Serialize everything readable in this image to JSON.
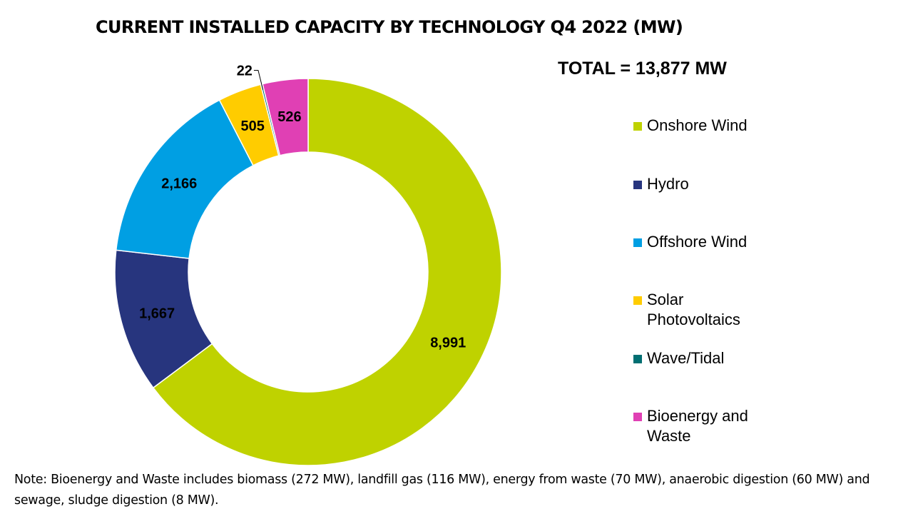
{
  "title": "CURRENT INSTALLED CAPACITY BY TECHNOLOGY Q4 2022 (MW)",
  "total_label": "TOTAL = 13,877 MW",
  "note": "Note: Bioenergy and Waste includes biomass (272 MW), landfill gas (116 MW), energy from waste (70 MW), anaerobic digestion (60 MW) and sewage, sludge digestion (8 MW).",
  "chart_data": {
    "type": "pie",
    "variant": "donut",
    "title": "CURRENT INSTALLED CAPACITY BY TECHNOLOGY Q4 2022 (MW)",
    "unit": "MW",
    "total": 13877,
    "legend_position": "right",
    "slices": [
      {
        "name": "Onshore Wind",
        "value": 8991,
        "label": "8,991",
        "color": "#BFD200"
      },
      {
        "name": "Hydro",
        "value": 1667,
        "label": "1,667",
        "color": "#27357E"
      },
      {
        "name": "Offshore Wind",
        "value": 2166,
        "label": "2,166",
        "color": "#009FE3"
      },
      {
        "name": "Solar Photovoltaics",
        "value": 505,
        "label": "505",
        "color": "#FFCC00"
      },
      {
        "name": "Wave/Tidal",
        "value": 22,
        "label": "22",
        "color": "#006F72"
      },
      {
        "name": "Bioenergy and Waste",
        "value": 526,
        "label": "526",
        "color": "#E040B4"
      }
    ]
  },
  "legend": [
    {
      "label": "Onshore Wind",
      "color": "#BFD200"
    },
    {
      "label": "Hydro",
      "color": "#27357E"
    },
    {
      "label": "Offshore Wind",
      "color": "#009FE3"
    },
    {
      "label": "Solar Photovoltaics",
      "color": "#FFCC00"
    },
    {
      "label": "Wave/Tidal",
      "color": "#006F72"
    },
    {
      "label": "Bioenergy and Waste",
      "color": "#E040B4"
    }
  ]
}
